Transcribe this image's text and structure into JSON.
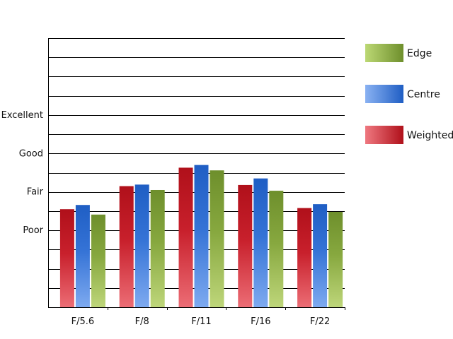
{
  "chart_data": {
    "type": "bar",
    "categories": [
      "F/5.6",
      "F/8",
      "F/11",
      "F/16",
      "F/22"
    ],
    "y_tick_labels": [
      "Poor",
      "Fair",
      "Good",
      "Excellent"
    ],
    "y_tick_values": [
      2,
      3,
      4,
      5
    ],
    "ylim": [
      0,
      7
    ],
    "grid": true,
    "legend_position": "right",
    "series": [
      {
        "name": "Weighted",
        "values": [
          2.55,
          3.15,
          3.63,
          3.18,
          2.58
        ],
        "color": "#c8202c"
      },
      {
        "name": "Centre",
        "values": [
          2.66,
          3.19,
          3.7,
          3.35,
          2.68
        ],
        "color": "#2f6fd0"
      },
      {
        "name": "Edge",
        "values": [
          2.41,
          3.05,
          3.56,
          3.03,
          2.48
        ],
        "color": "#7fa23c"
      }
    ],
    "legend": [
      "Edge",
      "Centre",
      "Weighted"
    ]
  }
}
